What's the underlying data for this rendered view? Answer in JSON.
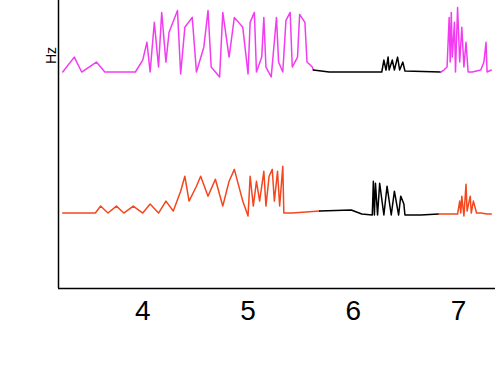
{
  "chart_data": {
    "type": "line",
    "y_label": "Hz",
    "xlim": [
      3.2,
      7.35
    ],
    "xticks": [
      4,
      5,
      6,
      7
    ],
    "ylim": [
      0,
      290
    ],
    "tick_labels": "x",
    "series": [
      {
        "color": "#f23cf2",
        "x": [
          3.24,
          3.35,
          3.42,
          3.56,
          3.64,
          3.93,
          4.0,
          4.04,
          4.07,
          4.11,
          4.15,
          4.18,
          4.22,
          4.25,
          4.33,
          4.36,
          4.4,
          4.47,
          4.51,
          4.58,
          4.62,
          4.65,
          4.73,
          4.76,
          4.82,
          4.87,
          4.95,
          5.0,
          5.02,
          5.06,
          5.08,
          5.13,
          5.15,
          5.17,
          5.22,
          5.27,
          5.29,
          5.33,
          5.36,
          5.4,
          5.42,
          5.47,
          5.49,
          5.54,
          5.56,
          5.61,
          5.62
        ],
        "values": [
          218,
          233,
          218,
          228,
          218,
          218,
          230,
          248,
          218,
          268,
          223,
          278,
          228,
          258,
          280,
          216,
          263,
          273,
          218,
          243,
          280,
          223,
          213,
          278,
          233,
          273,
          263,
          216,
          268,
          278,
          218,
          233,
          273,
          223,
          213,
          273,
          228,
          218,
          270,
          278,
          223,
          233,
          276,
          268,
          228,
          223,
          220
        ]
      },
      {
        "color": "#000000",
        "x": [
          5.62,
          5.77,
          6.27,
          6.29,
          6.31,
          6.33,
          6.34,
          6.37,
          6.39,
          6.42,
          6.44,
          6.47,
          6.49,
          6.83
        ],
        "values": [
          220,
          218,
          218,
          230,
          220,
          233,
          220,
          230,
          220,
          233,
          220,
          228,
          219,
          218
        ]
      },
      {
        "color": "#f23cf2",
        "x": [
          6.83,
          6.86,
          6.89,
          6.91,
          6.92,
          6.93,
          6.94,
          6.96,
          6.97,
          6.99,
          7.01,
          7.03,
          7.05,
          7.07,
          7.09,
          7.13,
          7.21,
          7.24,
          7.26,
          7.27,
          7.31
        ],
        "values": [
          218,
          220,
          223,
          273,
          228,
          278,
          233,
          268,
          218,
          283,
          228,
          263,
          223,
          248,
          218,
          218,
          220,
          228,
          248,
          218,
          220
        ]
      },
      {
        "color": "#f5461e",
        "x": [
          3.24,
          3.55,
          3.6,
          3.67,
          3.75,
          3.82,
          3.91,
          4.0,
          4.07,
          4.15,
          4.22,
          4.29,
          4.36,
          4.4,
          4.44,
          4.51,
          4.55,
          4.62,
          4.69,
          4.76,
          4.82,
          4.87,
          4.95,
          5.0,
          5.02,
          5.05,
          5.08,
          5.11,
          5.15,
          5.17,
          5.2,
          5.23,
          5.25,
          5.28,
          5.3,
          5.33,
          5.34,
          5.42,
          5.68
        ],
        "values": [
          76,
          76,
          83,
          76,
          83,
          76,
          83,
          76,
          85,
          76,
          88,
          78,
          98,
          113,
          88,
          103,
          113,
          93,
          110,
          83,
          108,
          120,
          88,
          73,
          113,
          83,
          108,
          88,
          118,
          83,
          113,
          120,
          88,
          118,
          83,
          123,
          76,
          76,
          78
        ]
      },
      {
        "color": "#000000",
        "x": [
          5.68,
          5.98,
          6.08,
          6.18,
          6.19,
          6.2,
          6.21,
          6.23,
          6.25,
          6.29,
          6.32,
          6.36,
          6.39,
          6.43,
          6.45,
          6.48,
          6.49,
          6.64,
          6.81
        ],
        "values": [
          78,
          79,
          75,
          74,
          108,
          74,
          106,
          74,
          106,
          74,
          103,
          74,
          98,
          74,
          93,
          85,
          74,
          74,
          75
        ]
      },
      {
        "color": "#f5461e",
        "x": [
          6.81,
          6.99,
          7.01,
          7.02,
          7.03,
          7.05,
          7.07,
          7.08,
          7.11,
          7.12,
          7.14,
          7.17,
          7.21,
          7.27,
          7.31
        ],
        "values": [
          75,
          75,
          88,
          76,
          93,
          73,
          105,
          78,
          93,
          76,
          88,
          76,
          76,
          75,
          75
        ]
      }
    ]
  }
}
